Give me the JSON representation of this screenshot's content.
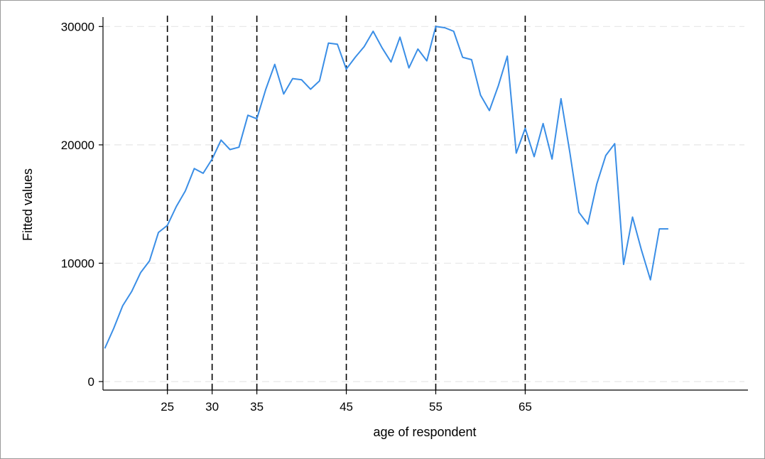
{
  "chart_data": {
    "type": "line",
    "title": "",
    "xlabel": "age of respondent",
    "ylabel": "Fitted values",
    "xlim": [
      17.8,
      89.9
    ],
    "ylim": [
      -720,
      30800
    ],
    "x_ticks": [
      25,
      30,
      35,
      45,
      55,
      65
    ],
    "y_ticks": [
      0,
      10000,
      20000,
      30000
    ],
    "grid": "horizontal-dashed",
    "reference_lines_x": [
      25,
      30,
      35,
      45,
      55,
      65
    ],
    "colors": {
      "line": "#3a8ee6",
      "grid": "#e6e6e6",
      "reference": "#000000",
      "axis": "#000000"
    },
    "series": [
      {
        "x": [
          18,
          19,
          20,
          21,
          22,
          23,
          24,
          25,
          26,
          27,
          28,
          29,
          30,
          31,
          32,
          33,
          34,
          35,
          36,
          37,
          38,
          39,
          40,
          41,
          42,
          43,
          44,
          45,
          46,
          47,
          48,
          49,
          50,
          51,
          52,
          53,
          54,
          55,
          56,
          57,
          58,
          59,
          60,
          61,
          62,
          63,
          64,
          65,
          66,
          67,
          68,
          69,
          70,
          71,
          72,
          73,
          74,
          75,
          76,
          77,
          78,
          79,
          80,
          81
        ],
        "y": [
          2800,
          4500,
          6400,
          7600,
          9200,
          10200,
          12600,
          13200,
          14800,
          16100,
          18000,
          17600,
          18800,
          20400,
          19600,
          19800,
          22500,
          22200,
          24700,
          26800,
          24300,
          25600,
          25500,
          24700,
          25400,
          28600,
          28500,
          26400,
          27400,
          28300,
          29600,
          28200,
          27000,
          29100,
          26500,
          28100,
          27100,
          30000,
          29900,
          29600,
          27400,
          27200,
          24200,
          22900,
          25000,
          27500,
          19300,
          21400,
          19000,
          21800,
          18800,
          23900,
          19300,
          14300,
          13300,
          16700,
          19100,
          20100,
          9900,
          13900,
          11100,
          8600,
          12900,
          12900
        ]
      }
    ]
  }
}
